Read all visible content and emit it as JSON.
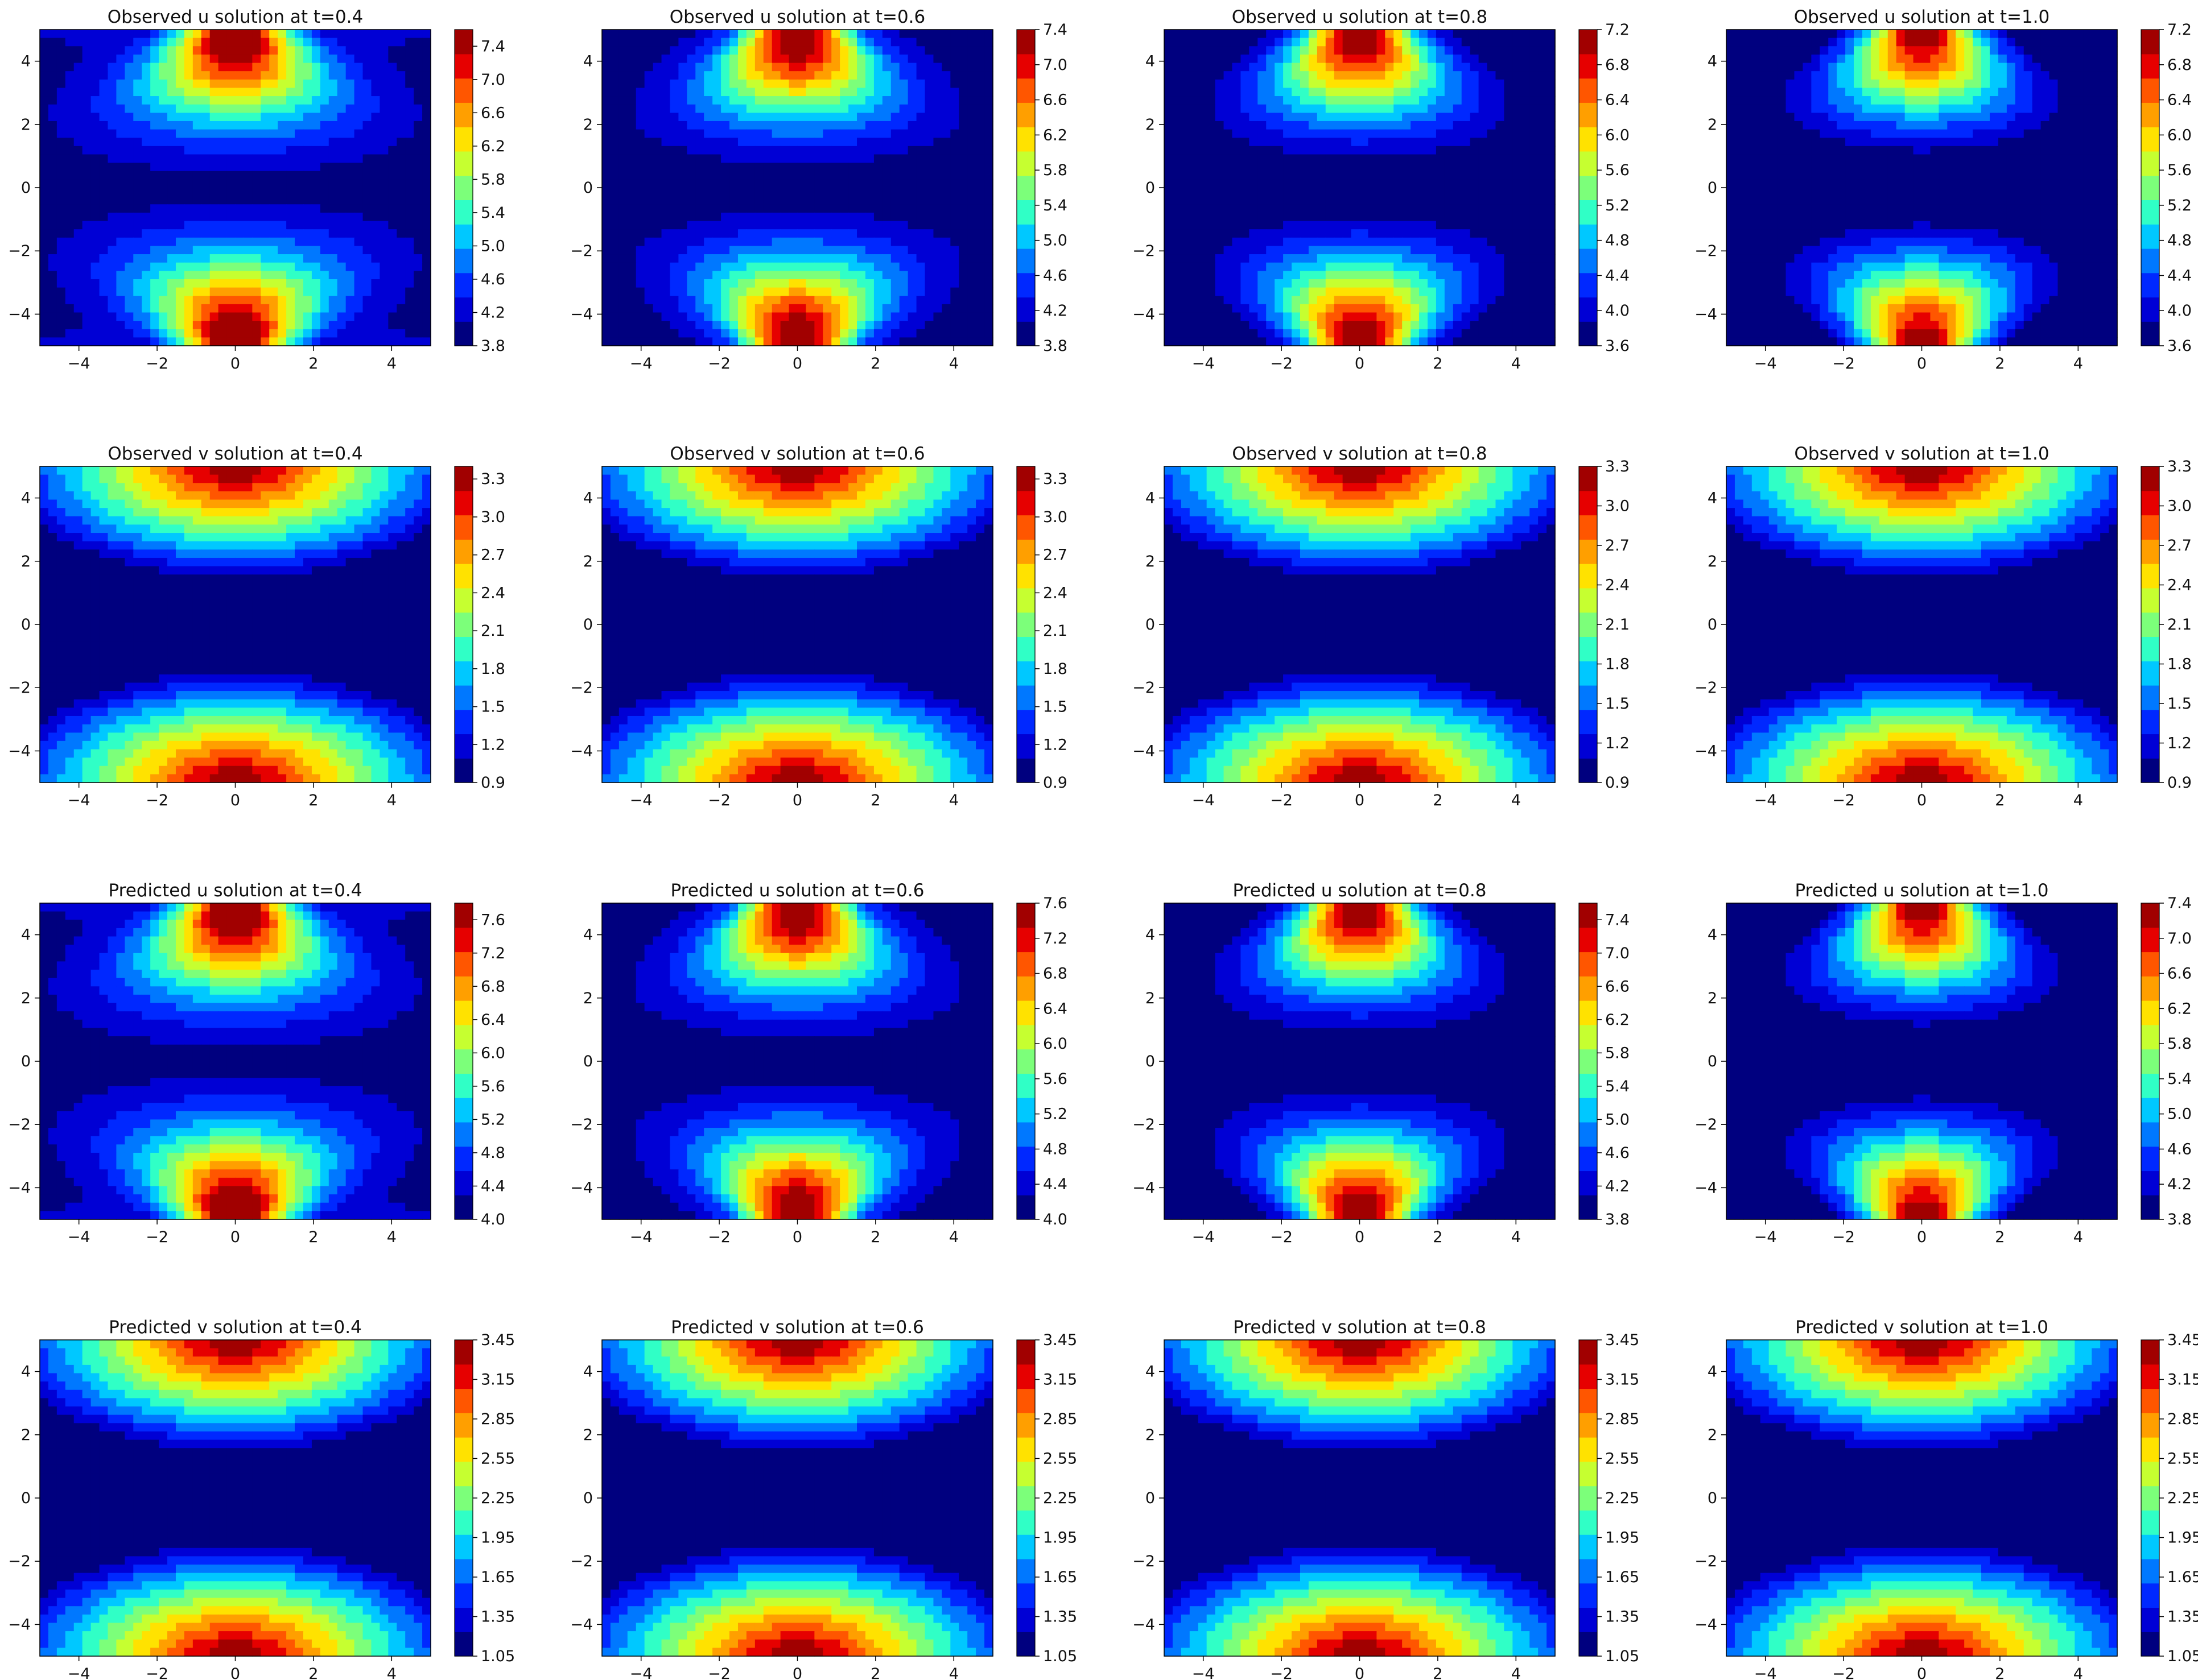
{
  "chart_data": [
    {
      "type": "heatmap",
      "title": "Observed u solution at t=0.4",
      "field": "u",
      "x_ticks": [
        "−4",
        "−2",
        "0",
        "2",
        "4"
      ],
      "y_ticks": [
        "4",
        "2",
        "0",
        "−2",
        "−4"
      ],
      "xlim": [
        -5,
        5
      ],
      "ylim": [
        -5,
        5
      ],
      "colorbar_ticks": [
        "7.4",
        "7.0",
        "6.6",
        "6.2",
        "5.8",
        "5.4",
        "5.0",
        "4.6",
        "4.2",
        "3.8"
      ],
      "colorbar_range": [
        3.8,
        7.6
      ]
    },
    {
      "type": "heatmap",
      "title": "Observed u solution at t=0.6",
      "field": "u",
      "x_ticks": [
        "−4",
        "−2",
        "0",
        "2",
        "4"
      ],
      "y_ticks": [
        "4",
        "2",
        "0",
        "−2",
        "−4"
      ],
      "xlim": [
        -5,
        5
      ],
      "ylim": [
        -5,
        5
      ],
      "colorbar_ticks": [
        "7.4",
        "7.0",
        "6.6",
        "6.2",
        "5.8",
        "5.4",
        "5.0",
        "4.6",
        "4.2",
        "3.8"
      ],
      "colorbar_range": [
        3.8,
        7.4
      ]
    },
    {
      "type": "heatmap",
      "title": "Observed u solution at t=0.8",
      "field": "u",
      "x_ticks": [
        "−4",
        "−2",
        "0",
        "2",
        "4"
      ],
      "y_ticks": [
        "4",
        "2",
        "0",
        "−2",
        "−4"
      ],
      "xlim": [
        -5,
        5
      ],
      "ylim": [
        -5,
        5
      ],
      "colorbar_ticks": [
        "7.2",
        "6.8",
        "6.4",
        "6.0",
        "5.6",
        "5.2",
        "4.8",
        "4.4",
        "4.0",
        "3.6"
      ],
      "colorbar_range": [
        3.6,
        7.2
      ]
    },
    {
      "type": "heatmap",
      "title": "Observed u solution at t=1.0",
      "field": "u",
      "x_ticks": [
        "−4",
        "−2",
        "0",
        "2",
        "4"
      ],
      "y_ticks": [
        "4",
        "2",
        "0",
        "−2",
        "−4"
      ],
      "xlim": [
        -5,
        5
      ],
      "ylim": [
        -5,
        5
      ],
      "colorbar_ticks": [
        "7.2",
        "6.8",
        "6.4",
        "6.0",
        "5.6",
        "5.2",
        "4.8",
        "4.4",
        "4.0",
        "3.6"
      ],
      "colorbar_range": [
        3.6,
        7.2
      ]
    },
    {
      "type": "heatmap",
      "title": "Observed v solution at t=0.4",
      "field": "v",
      "x_ticks": [
        "−4",
        "−2",
        "0",
        "2",
        "4"
      ],
      "y_ticks": [
        "4",
        "2",
        "0",
        "−2",
        "−4"
      ],
      "xlim": [
        -5,
        5
      ],
      "ylim": [
        -5,
        5
      ],
      "colorbar_ticks": [
        "3.3",
        "3.0",
        "2.7",
        "2.4",
        "2.1",
        "1.8",
        "1.5",
        "1.2",
        "0.9"
      ],
      "colorbar_range": [
        0.9,
        3.4
      ]
    },
    {
      "type": "heatmap",
      "title": "Observed v solution at t=0.6",
      "field": "v",
      "x_ticks": [
        "−4",
        "−2",
        "0",
        "2",
        "4"
      ],
      "y_ticks": [
        "4",
        "2",
        "0",
        "−2",
        "−4"
      ],
      "xlim": [
        -5,
        5
      ],
      "ylim": [
        -5,
        5
      ],
      "colorbar_ticks": [
        "3.3",
        "3.0",
        "2.7",
        "2.4",
        "2.1",
        "1.8",
        "1.5",
        "1.2",
        "0.9"
      ],
      "colorbar_range": [
        0.9,
        3.4
      ]
    },
    {
      "type": "heatmap",
      "title": "Observed v solution at t=0.8",
      "field": "v",
      "x_ticks": [
        "−4",
        "−2",
        "0",
        "2",
        "4"
      ],
      "y_ticks": [
        "4",
        "2",
        "0",
        "−2",
        "−4"
      ],
      "xlim": [
        -5,
        5
      ],
      "ylim": [
        -5,
        5
      ],
      "colorbar_ticks": [
        "3.3",
        "3.0",
        "2.7",
        "2.4",
        "2.1",
        "1.8",
        "1.5",
        "1.2",
        "0.9"
      ],
      "colorbar_range": [
        0.9,
        3.3
      ]
    },
    {
      "type": "heatmap",
      "title": "Observed v solution at t=1.0",
      "field": "v",
      "x_ticks": [
        "−4",
        "−2",
        "0",
        "2",
        "4"
      ],
      "y_ticks": [
        "4",
        "2",
        "0",
        "−2",
        "−4"
      ],
      "xlim": [
        -5,
        5
      ],
      "ylim": [
        -5,
        5
      ],
      "colorbar_ticks": [
        "3.3",
        "3.0",
        "2.7",
        "2.4",
        "2.1",
        "1.8",
        "1.5",
        "1.2",
        "0.9"
      ],
      "colorbar_range": [
        0.9,
        3.3
      ]
    },
    {
      "type": "heatmap",
      "title": "Predicted u solution at t=0.4",
      "field": "u",
      "x_ticks": [
        "−4",
        "−2",
        "0",
        "2",
        "4"
      ],
      "y_ticks": [
        "4",
        "2",
        "0",
        "−2",
        "−4"
      ],
      "xlim": [
        -5,
        5
      ],
      "ylim": [
        -5,
        5
      ],
      "colorbar_ticks": [
        "7.6",
        "7.2",
        "6.8",
        "6.4",
        "6.0",
        "5.6",
        "5.2",
        "4.8",
        "4.4",
        "4.0"
      ],
      "colorbar_range": [
        4.0,
        7.8
      ]
    },
    {
      "type": "heatmap",
      "title": "Predicted u solution at t=0.6",
      "field": "u",
      "x_ticks": [
        "−4",
        "−2",
        "0",
        "2",
        "4"
      ],
      "y_ticks": [
        "4",
        "2",
        "0",
        "−2",
        "−4"
      ],
      "xlim": [
        -5,
        5
      ],
      "ylim": [
        -5,
        5
      ],
      "colorbar_ticks": [
        "7.6",
        "7.2",
        "6.8",
        "6.4",
        "6.0",
        "5.6",
        "5.2",
        "4.8",
        "4.4",
        "4.0"
      ],
      "colorbar_range": [
        4.0,
        7.6
      ]
    },
    {
      "type": "heatmap",
      "title": "Predicted u solution at t=0.8",
      "field": "u",
      "x_ticks": [
        "−4",
        "−2",
        "0",
        "2",
        "4"
      ],
      "y_ticks": [
        "4",
        "2",
        "0",
        "−2",
        "−4"
      ],
      "xlim": [
        -5,
        5
      ],
      "ylim": [
        -5,
        5
      ],
      "colorbar_ticks": [
        "7.4",
        "7.0",
        "6.6",
        "6.2",
        "5.8",
        "5.4",
        "5.0",
        "4.6",
        "4.2",
        "3.8"
      ],
      "colorbar_range": [
        3.8,
        7.6
      ]
    },
    {
      "type": "heatmap",
      "title": "Predicted u solution at t=1.0",
      "field": "u",
      "x_ticks": [
        "−4",
        "−2",
        "0",
        "2",
        "4"
      ],
      "y_ticks": [
        "4",
        "2",
        "0",
        "−2",
        "−4"
      ],
      "xlim": [
        -5,
        5
      ],
      "ylim": [
        -5,
        5
      ],
      "colorbar_ticks": [
        "7.4",
        "7.0",
        "6.6",
        "6.2",
        "5.8",
        "5.4",
        "5.0",
        "4.6",
        "4.2",
        "3.8"
      ],
      "colorbar_range": [
        3.8,
        7.4
      ]
    },
    {
      "type": "heatmap",
      "title": "Predicted v solution at t=0.4",
      "field": "v",
      "x_ticks": [
        "−4",
        "−2",
        "0",
        "2",
        "4"
      ],
      "y_ticks": [
        "4",
        "2",
        "0",
        "−2",
        "−4"
      ],
      "xlim": [
        -5,
        5
      ],
      "ylim": [
        -5,
        5
      ],
      "colorbar_ticks": [
        "3.45",
        "3.15",
        "2.85",
        "2.55",
        "2.25",
        "1.95",
        "1.65",
        "1.35",
        "1.05"
      ],
      "colorbar_range": [
        1.05,
        3.45
      ]
    },
    {
      "type": "heatmap",
      "title": "Predicted v solution at t=0.6",
      "field": "v",
      "x_ticks": [
        "−4",
        "−2",
        "0",
        "2",
        "4"
      ],
      "y_ticks": [
        "4",
        "2",
        "0",
        "−2",
        "−4"
      ],
      "xlim": [
        -5,
        5
      ],
      "ylim": [
        -5,
        5
      ],
      "colorbar_ticks": [
        "3.45",
        "3.15",
        "2.85",
        "2.55",
        "2.25",
        "1.95",
        "1.65",
        "1.35",
        "1.05"
      ],
      "colorbar_range": [
        1.05,
        3.45
      ]
    },
    {
      "type": "heatmap",
      "title": "Predicted v solution at t=0.8",
      "field": "v",
      "x_ticks": [
        "−4",
        "−2",
        "0",
        "2",
        "4"
      ],
      "y_ticks": [
        "4",
        "2",
        "0",
        "−2",
        "−4"
      ],
      "xlim": [
        -5,
        5
      ],
      "ylim": [
        -5,
        5
      ],
      "colorbar_ticks": [
        "3.45",
        "3.15",
        "2.85",
        "2.55",
        "2.25",
        "1.95",
        "1.65",
        "1.35",
        "1.05"
      ],
      "colorbar_range": [
        1.05,
        3.45
      ]
    },
    {
      "type": "heatmap",
      "title": "Predicted v solution at t=1.0",
      "field": "v",
      "x_ticks": [
        "−4",
        "−2",
        "0",
        "2",
        "4"
      ],
      "y_ticks": [
        "4",
        "2",
        "0",
        "−2",
        "−4"
      ],
      "xlim": [
        -5,
        5
      ],
      "ylim": [
        -5,
        5
      ],
      "colorbar_ticks": [
        "3.45",
        "3.15",
        "2.85",
        "2.55",
        "2.25",
        "1.95",
        "1.65",
        "1.35",
        "1.05"
      ],
      "colorbar_range": [
        1.05,
        3.45
      ]
    }
  ],
  "colormap": [
    "#00007f",
    "#0000d5",
    "#0028ff",
    "#0078ff",
    "#00c8ff",
    "#30ffc6",
    "#7cff7a",
    "#c6ff30",
    "#ffe200",
    "#ff9f00",
    "#ff5600",
    "#e60000",
    "#a10000"
  ]
}
